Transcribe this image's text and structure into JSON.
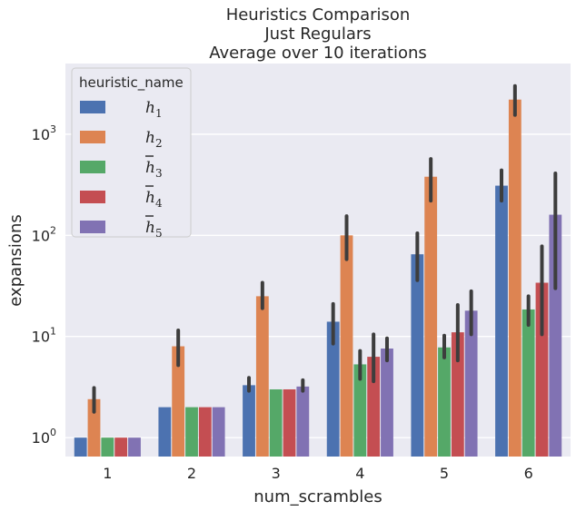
{
  "chart_data": {
    "type": "bar",
    "title_lines": [
      "Heuristics Comparison",
      "Just Regulars",
      "Average over 10 iterations"
    ],
    "xlabel": "num_scrambles",
    "ylabel": "expansions",
    "yscale": "log",
    "ylim": [
      0.65,
      5000
    ],
    "y_ticks": [
      {
        "value": 1,
        "base": "10",
        "exp": "0"
      },
      {
        "value": 10,
        "base": "10",
        "exp": "1"
      },
      {
        "value": 100,
        "base": "10",
        "exp": "2"
      },
      {
        "value": 1000,
        "base": "10",
        "exp": "3"
      }
    ],
    "categories": [
      "1",
      "2",
      "3",
      "4",
      "5",
      "6"
    ],
    "legend": {
      "title": "heuristic_name",
      "position": "upper-left"
    },
    "grid": true,
    "series": [
      {
        "name": "h1",
        "label_base": "h",
        "label_sub": "1",
        "bar": false,
        "color": "#4c72b0",
        "values": [
          1.0,
          2.0,
          3.3,
          14,
          65,
          310
        ],
        "ci": [
          null,
          null,
          [
            2.9,
            3.9
          ],
          [
            8.5,
            21
          ],
          [
            36,
            105
          ],
          [
            220,
            440
          ]
        ]
      },
      {
        "name": "h2",
        "label_base": "h",
        "label_sub": "2",
        "bar": false,
        "color": "#dd8452",
        "values": [
          2.4,
          8.0,
          25,
          100,
          380,
          2200
        ],
        "ci": [
          [
            1.8,
            3.1
          ],
          [
            5.2,
            11.5
          ],
          [
            19,
            34
          ],
          [
            58,
            155
          ],
          [
            220,
            570
          ],
          [
            1550,
            3000
          ]
        ]
      },
      {
        "name": "h3",
        "label_base": "h",
        "label_sub": "3",
        "bar": true,
        "color": "#55a868",
        "values": [
          1.0,
          2.0,
          3.0,
          5.3,
          7.8,
          18.5
        ],
        "ci": [
          null,
          null,
          null,
          [
            3.8,
            7.2
          ],
          [
            6.2,
            10.2
          ],
          [
            13,
            25
          ]
        ]
      },
      {
        "name": "h4",
        "label_base": "h",
        "label_sub": "4",
        "bar": true,
        "color": "#c44e52",
        "values": [
          1.0,
          2.0,
          3.0,
          6.3,
          11,
          34
        ],
        "ci": [
          null,
          null,
          null,
          [
            3.6,
            10.5
          ],
          [
            5.8,
            20.5
          ],
          [
            10.5,
            78
          ]
        ]
      },
      {
        "name": "h5",
        "label_base": "h",
        "label_sub": "5",
        "bar": true,
        "color": "#8172b3",
        "values": [
          1.0,
          2.0,
          3.2,
          7.6,
          18,
          160
        ],
        "ci": [
          null,
          null,
          [
            2.9,
            3.7
          ],
          [
            5.8,
            9.6
          ],
          [
            10.5,
            28
          ],
          [
            30,
            410
          ]
        ]
      }
    ]
  }
}
